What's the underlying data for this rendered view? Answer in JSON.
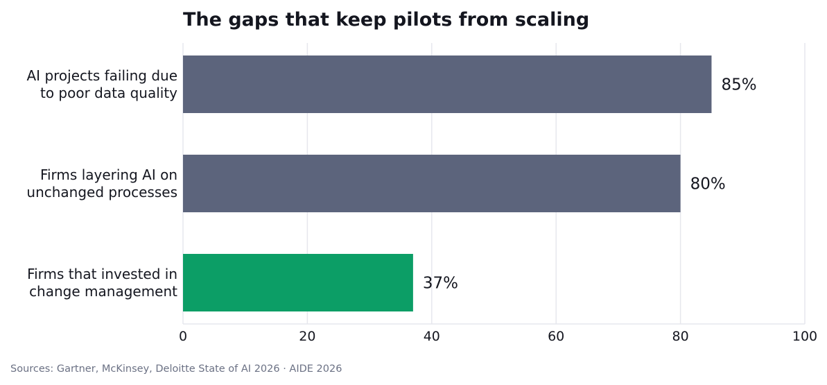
{
  "chart_data": {
    "type": "bar",
    "orientation": "horizontal",
    "title": "The gaps that keep pilots from scaling",
    "categories": [
      [
        "AI projects failing due",
        "to poor data quality"
      ],
      [
        "Firms layering AI on",
        "unchanged processes"
      ],
      [
        "Firms that invested in",
        "change management"
      ]
    ],
    "values": [
      85,
      80,
      37
    ],
    "value_labels": [
      "85%",
      "80%",
      "37%"
    ],
    "bar_colors": [
      "#5c647c",
      "#5c647c",
      "#0c9e66"
    ],
    "xlim": [
      0,
      100
    ],
    "xticks": [
      0,
      20,
      40,
      60,
      80,
      100
    ],
    "grid": true,
    "xlabel": "",
    "ylabel": ""
  },
  "footer": {
    "source": "Sources: Gartner, McKinsey, Deloitte State of AI 2026  ·  AIDE 2026"
  }
}
